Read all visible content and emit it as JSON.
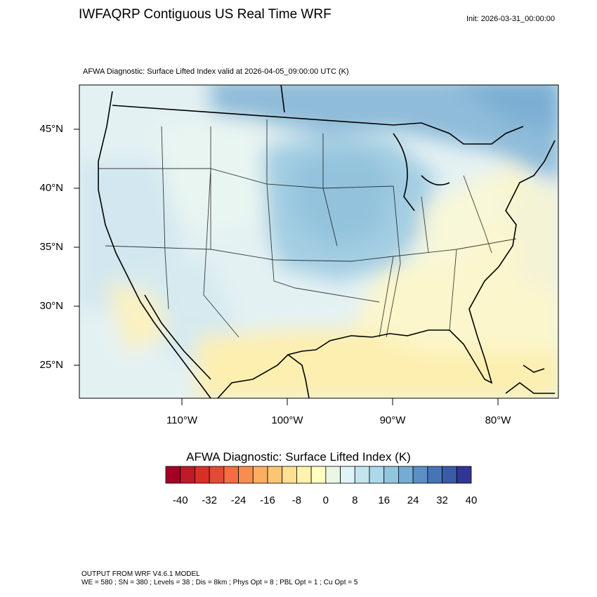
{
  "header": {
    "title": "IWFAQRP Contiguous US Real Time WRF",
    "init": "Init: 2026-03-31_00:00:00"
  },
  "map": {
    "subtitle": "AFWA Diagnostic: Surface Lifted Index valid at 2026-04-05_09:00:00 UTC   (K)",
    "lat_labels": [
      "45°N",
      "40°N",
      "35°N",
      "30°N",
      "25°N"
    ],
    "lon_labels": [
      "110°W",
      "100°W",
      "90°W",
      "80°W"
    ],
    "field_description_colors": {
      "west_pacific": "#dcebf1",
      "interior_west": "#e6f3f2",
      "plains_midwest": "#a9cfe2",
      "canada_north": "#8fbcd9",
      "southeast": "#fbf6cc",
      "gulf_atlantic": "#fdf0b0",
      "coastline": "#000000"
    }
  },
  "colorbar": {
    "title": "AFWA Diagnostic: Surface Lifted Index  (K)",
    "labels": [
      "-40",
      "-32",
      "-24",
      "-16",
      "-8",
      "0",
      "8",
      "16",
      "24",
      "32",
      "40"
    ],
    "colors": [
      "#a50026",
      "#be1a28",
      "#d73027",
      "#e34a33",
      "#f46d43",
      "#f88d52",
      "#fdae61",
      "#fdc474",
      "#fee090",
      "#fff2ab",
      "#ffffbf",
      "#ecf6e5",
      "#e0f3f8",
      "#c4e4ef",
      "#abd9e9",
      "#92c5de",
      "#74add1",
      "#5b8fc5",
      "#4575b4",
      "#3a5ca8",
      "#313695"
    ]
  },
  "footer": {
    "line1": "OUTPUT FROM WRF V4.6.1 MODEL",
    "line2": "WE = 580 ; SN = 380 ; Levels = 38 ; Dis = 8km ; Phys Opt = 8 ; PBL Opt = 1 ; Cu Opt = 5"
  }
}
